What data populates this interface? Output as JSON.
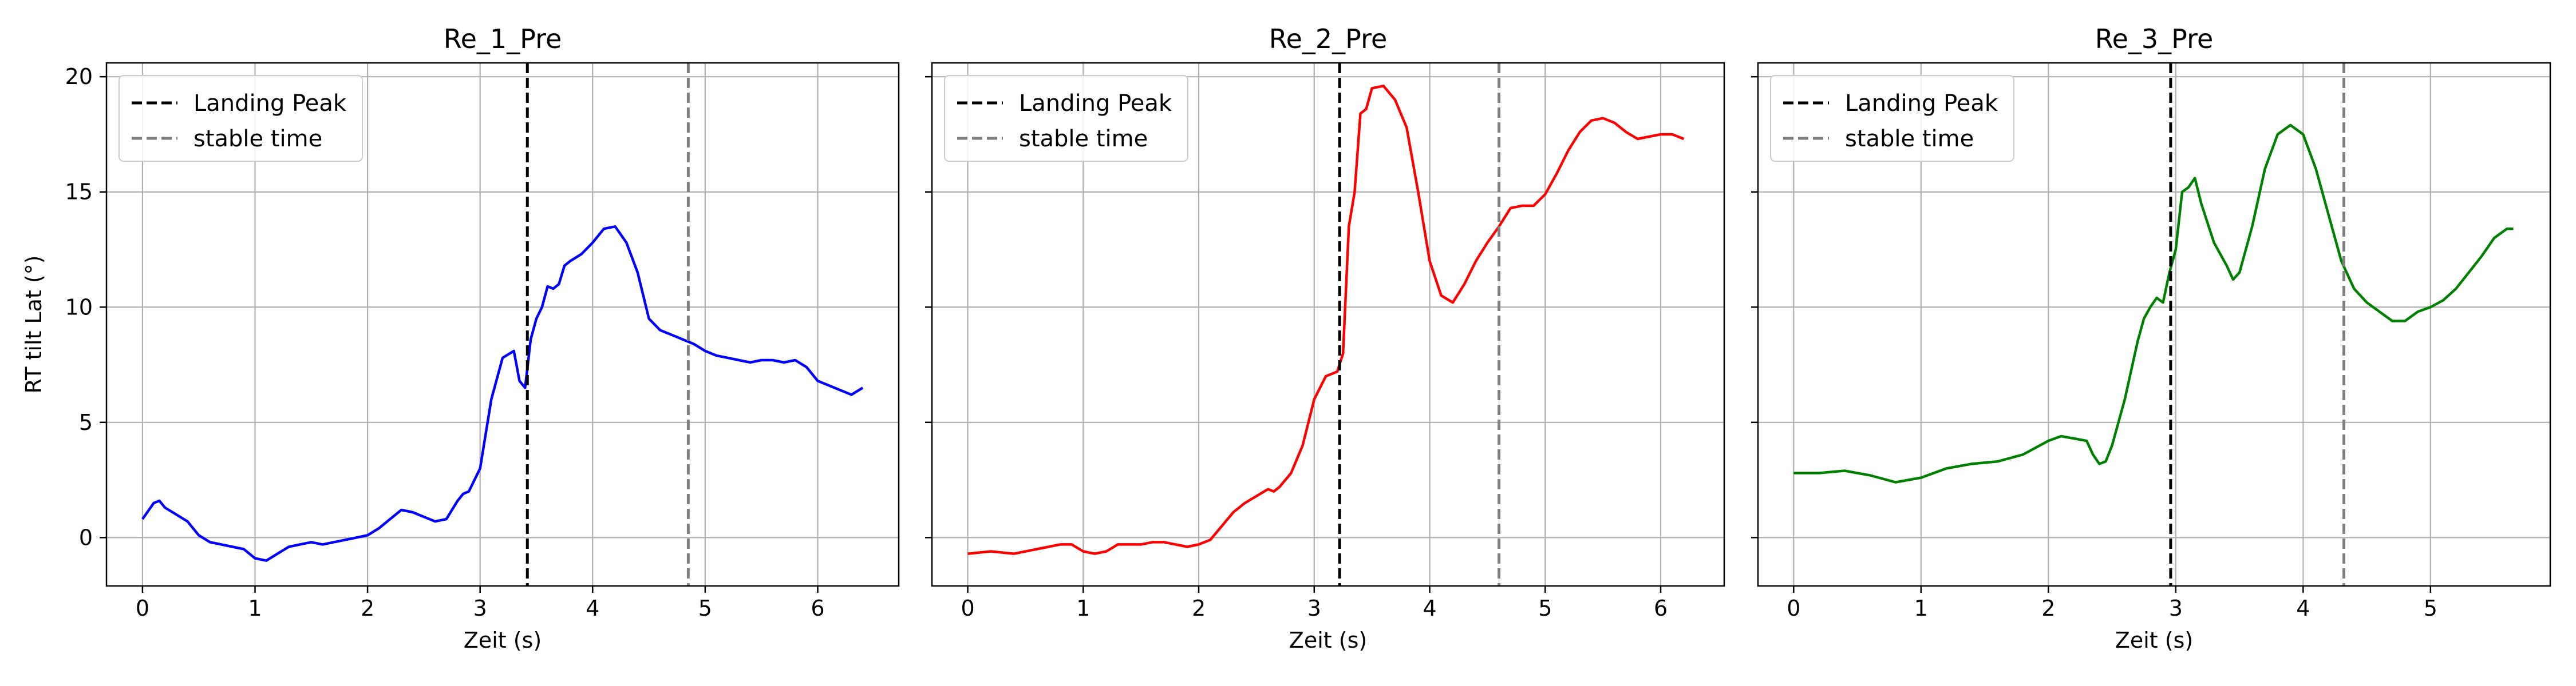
{
  "chart_data": [
    {
      "type": "line",
      "title": "Re_1_Pre",
      "xlabel": "Zeit (s)",
      "ylabel": "RT tilt Lat (°)",
      "xlim": [
        -0.32,
        6.72
      ],
      "ylim": [
        -2.1,
        20.6
      ],
      "xticks": [
        0,
        1,
        2,
        3,
        4,
        5,
        6
      ],
      "yticks": [
        0,
        5,
        10,
        15,
        20
      ],
      "show_ytick_labels": true,
      "grid": true,
      "legend_position": "top-left",
      "line_color": "#0000ff",
      "markers": [
        {
          "name": "Landing Peak",
          "x": 3.42,
          "style": "dashed",
          "color": "#000000"
        },
        {
          "name": "stable time",
          "x": 4.85,
          "style": "dashed",
          "color": "#808080"
        }
      ],
      "series": [
        {
          "x": [
            0,
            0.1,
            0.15,
            0.2,
            0.3,
            0.4,
            0.5,
            0.6,
            0.7,
            0.8,
            0.9,
            1.0,
            1.1,
            1.2,
            1.3,
            1.4,
            1.5,
            1.6,
            1.7,
            1.8,
            1.9,
            2.0,
            2.1,
            2.2,
            2.3,
            2.4,
            2.5,
            2.6,
            2.7,
            2.8,
            2.85,
            2.9,
            3.0,
            3.1,
            3.2,
            3.3,
            3.35,
            3.4,
            3.45,
            3.5,
            3.55,
            3.6,
            3.65,
            3.7,
            3.75,
            3.8,
            3.9,
            4.0,
            4.1,
            4.2,
            4.3,
            4.4,
            4.5,
            4.6,
            4.7,
            4.8,
            4.9,
            5.0,
            5.1,
            5.2,
            5.3,
            5.4,
            5.5,
            5.6,
            5.7,
            5.8,
            5.9,
            6.0,
            6.1,
            6.2,
            6.3,
            6.4
          ],
          "y": [
            0.8,
            1.5,
            1.6,
            1.3,
            1.0,
            0.7,
            0.1,
            -0.2,
            -0.3,
            -0.4,
            -0.5,
            -0.9,
            -1.0,
            -0.7,
            -0.4,
            -0.3,
            -0.2,
            -0.3,
            -0.2,
            -0.1,
            0.0,
            0.1,
            0.4,
            0.8,
            1.2,
            1.1,
            0.9,
            0.7,
            0.8,
            1.6,
            1.9,
            2.0,
            3.0,
            6.0,
            7.8,
            8.1,
            6.8,
            6.5,
            8.6,
            9.5,
            10.0,
            10.9,
            10.8,
            11.0,
            11.8,
            12.0,
            12.3,
            12.8,
            13.4,
            13.5,
            12.8,
            11.5,
            9.5,
            9.0,
            8.8,
            8.6,
            8.4,
            8.1,
            7.9,
            7.8,
            7.7,
            7.6,
            7.7,
            7.7,
            7.6,
            7.7,
            7.4,
            6.8,
            6.6,
            6.4,
            6.2,
            6.5
          ]
        }
      ]
    },
    {
      "type": "line",
      "title": "Re_2_Pre",
      "xlabel": "Zeit (s)",
      "ylabel": "",
      "xlim": [
        -0.31,
        6.55
      ],
      "ylim": [
        -2.1,
        20.6
      ],
      "xticks": [
        0,
        1,
        2,
        3,
        4,
        5,
        6
      ],
      "yticks": [
        0,
        5,
        10,
        15,
        20
      ],
      "show_ytick_labels": false,
      "grid": true,
      "legend_position": "top-left",
      "line_color": "#ff0000",
      "markers": [
        {
          "name": "Landing Peak",
          "x": 3.22,
          "style": "dashed",
          "color": "#000000"
        },
        {
          "name": "stable time",
          "x": 4.6,
          "style": "dashed",
          "color": "#808080"
        }
      ],
      "series": [
        {
          "x": [
            0,
            0.2,
            0.4,
            0.6,
            0.8,
            0.9,
            1.0,
            1.1,
            1.2,
            1.3,
            1.4,
            1.5,
            1.6,
            1.7,
            1.8,
            1.9,
            2.0,
            2.1,
            2.2,
            2.3,
            2.4,
            2.5,
            2.6,
            2.65,
            2.7,
            2.8,
            2.9,
            3.0,
            3.1,
            3.2,
            3.25,
            3.3,
            3.35,
            3.4,
            3.45,
            3.5,
            3.6,
            3.7,
            3.8,
            3.9,
            4.0,
            4.1,
            4.2,
            4.3,
            4.4,
            4.5,
            4.6,
            4.7,
            4.8,
            4.9,
            5.0,
            5.1,
            5.2,
            5.3,
            5.4,
            5.5,
            5.6,
            5.7,
            5.8,
            5.9,
            6.0,
            6.1,
            6.2
          ],
          "y": [
            -0.7,
            -0.6,
            -0.7,
            -0.5,
            -0.3,
            -0.3,
            -0.6,
            -0.7,
            -0.6,
            -0.3,
            -0.3,
            -0.3,
            -0.2,
            -0.2,
            -0.3,
            -0.4,
            -0.3,
            -0.1,
            0.5,
            1.1,
            1.5,
            1.8,
            2.1,
            2.0,
            2.2,
            2.8,
            4.0,
            6.0,
            7.0,
            7.2,
            8.0,
            13.5,
            15.0,
            18.4,
            18.6,
            19.5,
            19.6,
            19.0,
            17.8,
            15.0,
            12.0,
            10.5,
            10.2,
            11.0,
            12.0,
            12.8,
            13.5,
            14.3,
            14.4,
            14.4,
            14.9,
            15.8,
            16.8,
            17.6,
            18.1,
            18.2,
            18.0,
            17.6,
            17.3,
            17.4,
            17.5,
            17.5,
            17.3
          ]
        }
      ]
    },
    {
      "type": "line",
      "title": "Re_3_Pre",
      "xlabel": "Zeit (s)",
      "ylabel": "",
      "xlim": [
        -0.28,
        5.94
      ],
      "ylim": [
        -2.1,
        20.6
      ],
      "xticks": [
        0,
        1,
        2,
        3,
        4,
        5
      ],
      "yticks": [
        0,
        5,
        10,
        15,
        20
      ],
      "show_ytick_labels": false,
      "grid": true,
      "legend_position": "top-left",
      "line_color": "#008000",
      "markers": [
        {
          "name": "Landing Peak",
          "x": 2.96,
          "style": "dashed",
          "color": "#000000"
        },
        {
          "name": "stable time",
          "x": 4.32,
          "style": "dashed",
          "color": "#808080"
        }
      ],
      "series": [
        {
          "x": [
            0,
            0.2,
            0.4,
            0.6,
            0.8,
            1.0,
            1.2,
            1.4,
            1.6,
            1.8,
            2.0,
            2.1,
            2.2,
            2.3,
            2.35,
            2.4,
            2.45,
            2.5,
            2.55,
            2.6,
            2.7,
            2.75,
            2.8,
            2.85,
            2.9,
            2.95,
            3.0,
            3.05,
            3.1,
            3.15,
            3.2,
            3.3,
            3.4,
            3.45,
            3.5,
            3.6,
            3.7,
            3.8,
            3.9,
            4.0,
            4.1,
            4.2,
            4.3,
            4.4,
            4.5,
            4.6,
            4.7,
            4.8,
            4.9,
            5.0,
            5.1,
            5.2,
            5.3,
            5.4,
            5.5,
            5.6,
            5.65
          ],
          "y": [
            2.8,
            2.8,
            2.9,
            2.7,
            2.4,
            2.6,
            3.0,
            3.2,
            3.3,
            3.6,
            4.2,
            4.4,
            4.3,
            4.2,
            3.6,
            3.2,
            3.3,
            4.0,
            5.0,
            6.0,
            8.5,
            9.5,
            10.0,
            10.4,
            10.2,
            11.5,
            12.5,
            15.0,
            15.2,
            15.6,
            14.5,
            12.8,
            11.8,
            11.2,
            11.5,
            13.5,
            16.0,
            17.5,
            17.9,
            17.5,
            16.0,
            14.0,
            12.0,
            10.8,
            10.2,
            9.8,
            9.4,
            9.4,
            9.8,
            10.0,
            10.3,
            10.8,
            11.5,
            12.2,
            13.0,
            13.4,
            13.4
          ]
        }
      ]
    }
  ]
}
